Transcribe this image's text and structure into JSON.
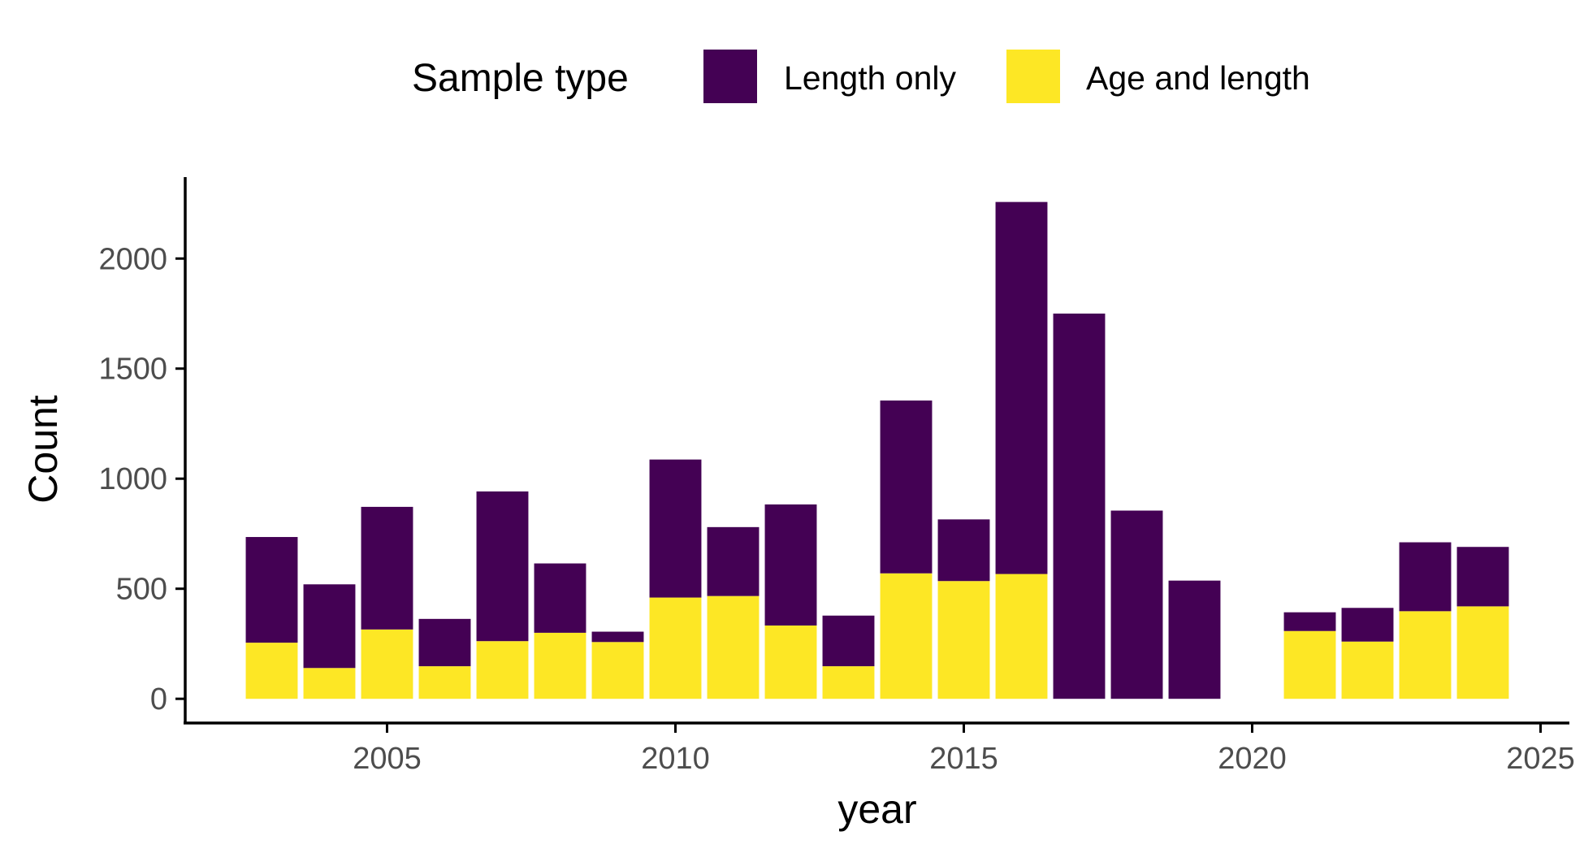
{
  "chart_data": {
    "type": "bar",
    "stacked": true,
    "xlabel": "year",
    "ylabel": "Count",
    "xlim": [
      2001.5,
      2025.5
    ],
    "ylim": [
      -110,
      2370
    ],
    "x_ticks": [
      2005,
      2010,
      2015,
      2020,
      2025
    ],
    "y_ticks": [
      0,
      500,
      1000,
      1500,
      2000
    ],
    "grid": false,
    "legend": {
      "title": "Sample type",
      "position": "top",
      "entries": [
        {
          "label": "Length only",
          "color": "#440154"
        },
        {
          "label": "Age and length",
          "color": "#FDE725"
        }
      ]
    },
    "x": [
      2003,
      2004,
      2005,
      2006,
      2007,
      2008,
      2009,
      2010,
      2011,
      2012,
      2013,
      2014,
      2015,
      2016,
      2017,
      2018,
      2019,
      2021,
      2022,
      2023,
      2024
    ],
    "series": [
      {
        "name": "Age and length",
        "color": "#FDE725",
        "values": [
          255,
          140,
          315,
          148,
          262,
          300,
          258,
          460,
          467,
          333,
          148,
          570,
          535,
          567,
          0,
          0,
          0,
          308,
          260,
          398,
          420
        ]
      },
      {
        "name": "Length only",
        "color": "#440154",
        "values": [
          480,
          380,
          557,
          215,
          680,
          315,
          47,
          627,
          313,
          550,
          230,
          785,
          280,
          1690,
          1750,
          855,
          537,
          85,
          153,
          313,
          270
        ]
      }
    ]
  }
}
